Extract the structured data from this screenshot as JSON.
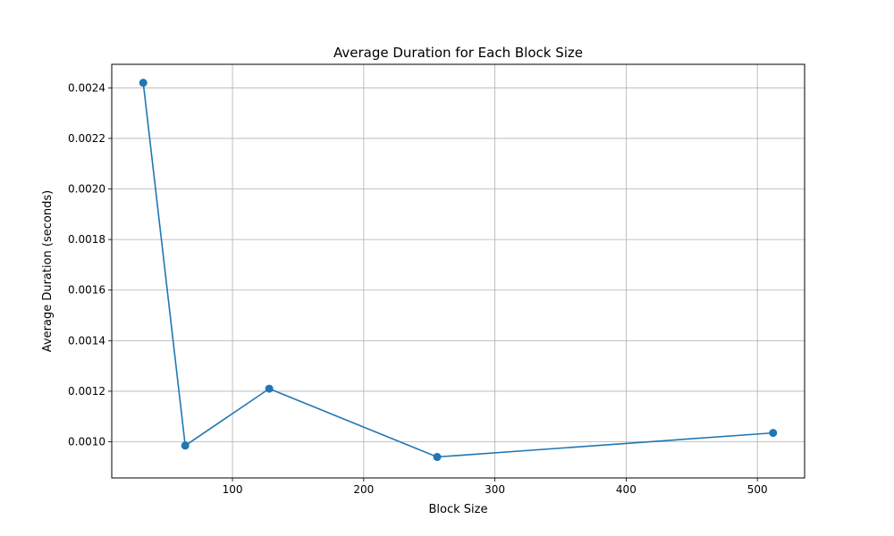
{
  "chart_data": {
    "type": "line",
    "title": "Average Duration for Each Block Size",
    "xlabel": "Block Size",
    "ylabel": "Average Duration (seconds)",
    "xlim": [
      8,
      536
    ],
    "ylim": [
      0.000857,
      0.002493
    ],
    "xticks": [
      100,
      200,
      300,
      400,
      500
    ],
    "xtick_labels": [
      "100",
      "200",
      "300",
      "400",
      "500"
    ],
    "yticks": [
      0.001,
      0.0012,
      0.0014,
      0.0016,
      0.0018,
      0.002,
      0.0022,
      0.0024
    ],
    "ytick_labels": [
      "0.0010",
      "0.0012",
      "0.0014",
      "0.0016",
      "0.0018",
      "0.0020",
      "0.0022",
      "0.0024"
    ],
    "grid": true,
    "series": [
      {
        "color": "#1f77b4",
        "marker": "circle",
        "x": [
          32,
          64,
          128,
          256,
          512
        ],
        "y": [
          0.00242,
          0.000985,
          0.00121,
          0.00094,
          0.001035
        ]
      }
    ]
  }
}
